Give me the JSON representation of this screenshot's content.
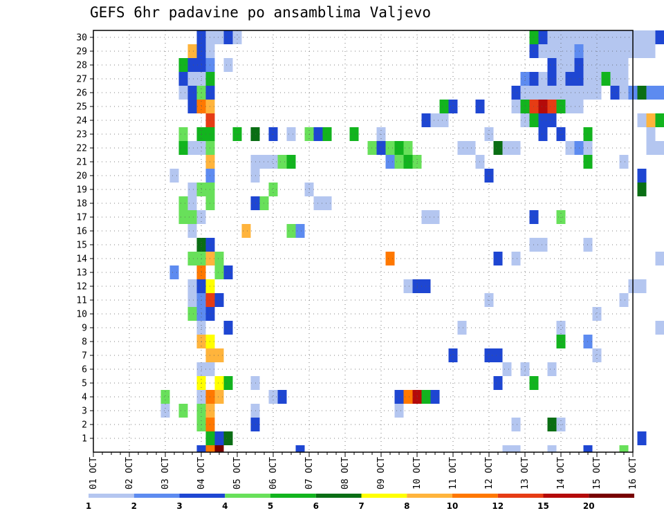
{
  "chart_data": {
    "type": "heatmap",
    "title": "GEFS 6hr padavine po ansamblima Valjevo",
    "xlabel": "",
    "ylabel": "",
    "x_ticks": [
      "01 OCT",
      "02 OCT",
      "03 OCT",
      "04 OCT",
      "05 OCT",
      "06 OCT",
      "07 OCT",
      "08 OCT",
      "09 OCT",
      "10 OCT",
      "11 OCT",
      "12 OCT",
      "13 OCT",
      "14 OCT",
      "15 OCT",
      "16 OCT"
    ],
    "y_ticks": [
      "1",
      "2",
      "3",
      "4",
      "5",
      "6",
      "7",
      "8",
      "9",
      "10",
      "11",
      "12",
      "13",
      "14",
      "15",
      "16",
      "17",
      "18",
      "19",
      "20",
      "21",
      "22",
      "23",
      "24",
      "25",
      "26",
      "27",
      "28",
      "29",
      "30"
    ],
    "time_step_hours": 6,
    "members": 31,
    "grid": "dotted",
    "legend_placement": "bottom",
    "legend": {
      "bins": [
        {
          "color": "#b4c6f0"
        },
        {
          "color": "#5d8bf0"
        },
        {
          "color": "#1e46d2"
        },
        {
          "color": "#68e05a"
        },
        {
          "color": "#12b41e"
        },
        {
          "color": "#0a6e14"
        },
        {
          "color": "#ffff00"
        },
        {
          "color": "#ffb43c"
        },
        {
          "color": "#ff7800"
        },
        {
          "color": "#e63c14"
        },
        {
          "color": "#b40a0a"
        },
        {
          "color": "#780000"
        }
      ],
      "labels": [
        "1",
        "2",
        "3",
        "4",
        "5",
        "6",
        "7",
        "8",
        "10",
        "12",
        "15",
        "20"
      ]
    },
    "cells": [
      [
        0,
        12,
        2
      ],
      [
        0,
        13,
        8
      ],
      [
        0,
        14,
        11
      ],
      [
        0,
        23,
        2
      ],
      [
        0,
        46,
        0
      ],
      [
        0,
        47,
        0
      ],
      [
        0,
        51,
        0
      ],
      [
        0,
        55,
        2
      ],
      [
        0,
        59,
        3
      ],
      [
        1,
        13,
        4
      ],
      [
        1,
        14,
        2
      ],
      [
        1,
        15,
        5
      ],
      [
        1,
        61,
        2
      ],
      [
        2,
        12,
        3
      ],
      [
        2,
        13,
        8
      ],
      [
        2,
        18,
        2
      ],
      [
        2,
        47,
        0
      ],
      [
        2,
        51,
        5
      ],
      [
        2,
        52,
        0
      ],
      [
        3,
        8,
        0
      ],
      [
        3,
        10,
        3
      ],
      [
        3,
        12,
        3
      ],
      [
        3,
        13,
        7
      ],
      [
        3,
        18,
        0
      ],
      [
        3,
        34,
        0
      ],
      [
        4,
        8,
        3
      ],
      [
        4,
        12,
        0
      ],
      [
        4,
        13,
        8
      ],
      [
        4,
        14,
        7
      ],
      [
        4,
        20,
        0
      ],
      [
        4,
        21,
        2
      ],
      [
        4,
        34,
        2
      ],
      [
        4,
        35,
        8
      ],
      [
        4,
        36,
        10
      ],
      [
        4,
        37,
        4
      ],
      [
        4,
        38,
        2
      ],
      [
        5,
        12,
        6
      ],
      [
        5,
        14,
        6
      ],
      [
        5,
        15,
        4
      ],
      [
        5,
        18,
        0
      ],
      [
        5,
        45,
        2
      ],
      [
        5,
        49,
        4
      ],
      [
        6,
        12,
        0
      ],
      [
        6,
        13,
        0
      ],
      [
        6,
        46,
        0
      ],
      [
        6,
        48,
        0
      ],
      [
        6,
        51,
        0
      ],
      [
        7,
        13,
        7
      ],
      [
        7,
        14,
        7
      ],
      [
        7,
        40,
        2
      ],
      [
        7,
        44,
        2
      ],
      [
        7,
        45,
        2
      ],
      [
        7,
        56,
        0
      ],
      [
        8,
        12,
        7
      ],
      [
        8,
        13,
        6
      ],
      [
        8,
        52,
        4
      ],
      [
        8,
        55,
        1
      ],
      [
        9,
        12,
        0
      ],
      [
        9,
        15,
        2
      ],
      [
        9,
        41,
        0
      ],
      [
        9,
        52,
        0
      ],
      [
        9,
        63,
        0
      ],
      [
        10,
        11,
        3
      ],
      [
        10,
        12,
        1
      ],
      [
        10,
        13,
        2
      ],
      [
        10,
        56,
        0
      ],
      [
        11,
        11,
        0
      ],
      [
        11,
        12,
        1
      ],
      [
        11,
        13,
        9
      ],
      [
        11,
        14,
        2
      ],
      [
        11,
        44,
        0
      ],
      [
        11,
        59,
        0
      ],
      [
        12,
        11,
        0
      ],
      [
        12,
        12,
        2
      ],
      [
        12,
        13,
        6
      ],
      [
        12,
        35,
        0
      ],
      [
        12,
        36,
        2
      ],
      [
        12,
        37,
        2
      ],
      [
        12,
        60,
        0
      ],
      [
        12,
        61,
        0
      ],
      [
        13,
        9,
        1
      ],
      [
        13,
        12,
        8
      ],
      [
        13,
        14,
        3
      ],
      [
        13,
        15,
        2
      ],
      [
        14,
        11,
        3
      ],
      [
        14,
        12,
        3
      ],
      [
        14,
        13,
        7
      ],
      [
        14,
        14,
        3
      ],
      [
        14,
        33,
        8
      ],
      [
        14,
        45,
        2
      ],
      [
        14,
        47,
        0
      ],
      [
        14,
        63,
        0
      ],
      [
        15,
        12,
        5
      ],
      [
        15,
        13,
        2
      ],
      [
        15,
        49,
        0
      ],
      [
        15,
        50,
        0
      ],
      [
        15,
        55,
        0
      ],
      [
        16,
        11,
        0
      ],
      [
        16,
        17,
        7
      ],
      [
        16,
        22,
        3
      ],
      [
        16,
        23,
        1
      ],
      [
        17,
        10,
        3
      ],
      [
        17,
        11,
        3
      ],
      [
        17,
        12,
        0
      ],
      [
        17,
        37,
        0
      ],
      [
        17,
        38,
        0
      ],
      [
        17,
        49,
        2
      ],
      [
        17,
        52,
        3
      ],
      [
        18,
        10,
        3
      ],
      [
        18,
        11,
        0
      ],
      [
        18,
        13,
        3
      ],
      [
        18,
        18,
        2
      ],
      [
        18,
        19,
        3
      ],
      [
        18,
        25,
        0
      ],
      [
        18,
        26,
        0
      ],
      [
        19,
        11,
        0
      ],
      [
        19,
        12,
        3
      ],
      [
        19,
        13,
        3
      ],
      [
        19,
        20,
        3
      ],
      [
        19,
        24,
        0
      ],
      [
        19,
        61,
        5
      ],
      [
        20,
        9,
        0
      ],
      [
        20,
        13,
        1
      ],
      [
        20,
        18,
        0
      ],
      [
        20,
        44,
        2
      ],
      [
        20,
        61,
        2
      ],
      [
        21,
        13,
        7
      ],
      [
        21,
        18,
        0
      ],
      [
        21,
        19,
        0
      ],
      [
        21,
        20,
        0
      ],
      [
        21,
        21,
        3
      ],
      [
        21,
        22,
        4
      ],
      [
        21,
        33,
        1
      ],
      [
        21,
        34,
        3
      ],
      [
        21,
        35,
        4
      ],
      [
        21,
        36,
        3
      ],
      [
        21,
        43,
        0
      ],
      [
        21,
        55,
        4
      ],
      [
        21,
        59,
        0
      ],
      [
        22,
        10,
        4
      ],
      [
        22,
        11,
        0
      ],
      [
        22,
        12,
        0
      ],
      [
        22,
        13,
        3
      ],
      [
        22,
        31,
        3
      ],
      [
        22,
        32,
        2
      ],
      [
        22,
        33,
        3
      ],
      [
        22,
        34,
        4
      ],
      [
        22,
        35,
        3
      ],
      [
        22,
        41,
        0
      ],
      [
        22,
        42,
        0
      ],
      [
        22,
        45,
        5
      ],
      [
        22,
        46,
        0
      ],
      [
        22,
        47,
        0
      ],
      [
        22,
        53,
        0
      ],
      [
        22,
        54,
        1
      ],
      [
        22,
        55,
        0
      ],
      [
        22,
        62,
        0
      ],
      [
        22,
        63,
        0
      ],
      [
        23,
        10,
        3
      ],
      [
        23,
        12,
        4
      ],
      [
        23,
        13,
        4
      ],
      [
        23,
        16,
        4
      ],
      [
        23,
        18,
        5
      ],
      [
        23,
        20,
        2
      ],
      [
        23,
        22,
        0
      ],
      [
        23,
        24,
        3
      ],
      [
        23,
        25,
        2
      ],
      [
        23,
        26,
        4
      ],
      [
        23,
        29,
        4
      ],
      [
        23,
        32,
        0
      ],
      [
        23,
        44,
        0
      ],
      [
        23,
        50,
        2
      ],
      [
        23,
        52,
        2
      ],
      [
        23,
        55,
        4
      ],
      [
        23,
        62,
        0
      ],
      [
        24,
        13,
        9
      ],
      [
        24,
        37,
        2
      ],
      [
        24,
        38,
        0
      ],
      [
        24,
        39,
        0
      ],
      [
        24,
        48,
        0
      ],
      [
        24,
        49,
        4
      ],
      [
        24,
        50,
        2
      ],
      [
        24,
        51,
        2
      ],
      [
        24,
        61,
        0
      ],
      [
        24,
        62,
        7
      ],
      [
        24,
        63,
        4
      ],
      [
        25,
        11,
        2
      ],
      [
        25,
        12,
        8
      ],
      [
        25,
        13,
        7
      ],
      [
        25,
        39,
        4
      ],
      [
        25,
        40,
        2
      ],
      [
        25,
        43,
        2
      ],
      [
        25,
        47,
        0
      ],
      [
        25,
        48,
        4
      ],
      [
        25,
        49,
        9
      ],
      [
        25,
        50,
        10
      ],
      [
        25,
        51,
        9
      ],
      [
        25,
        52,
        4
      ],
      [
        25,
        53,
        0
      ],
      [
        25,
        54,
        0
      ],
      [
        26,
        10,
        0
      ],
      [
        26,
        11,
        2
      ],
      [
        26,
        12,
        3
      ],
      [
        26,
        13,
        2
      ],
      [
        26,
        47,
        2
      ],
      [
        26,
        48,
        0
      ],
      [
        26,
        49,
        0
      ],
      [
        26,
        50,
        0
      ],
      [
        26,
        51,
        0
      ],
      [
        26,
        52,
        0
      ],
      [
        26,
        53,
        0
      ],
      [
        26,
        54,
        0
      ],
      [
        26,
        55,
        0
      ],
      [
        26,
        56,
        0
      ],
      [
        26,
        58,
        2
      ],
      [
        26,
        59,
        0
      ],
      [
        26,
        60,
        1
      ],
      [
        26,
        61,
        5
      ],
      [
        26,
        62,
        1
      ],
      [
        26,
        63,
        1
      ],
      [
        27,
        10,
        2
      ],
      [
        27,
        11,
        0
      ],
      [
        27,
        12,
        0
      ],
      [
        27,
        13,
        4
      ],
      [
        27,
        48,
        1
      ],
      [
        27,
        49,
        2
      ],
      [
        27,
        50,
        0
      ],
      [
        27,
        51,
        2
      ],
      [
        27,
        52,
        0
      ],
      [
        27,
        53,
        2
      ],
      [
        27,
        54,
        2
      ],
      [
        27,
        55,
        0
      ],
      [
        27,
        56,
        0
      ],
      [
        27,
        57,
        4
      ],
      [
        27,
        58,
        0
      ],
      [
        27,
        59,
        0
      ],
      [
        28,
        10,
        4
      ],
      [
        28,
        11,
        2
      ],
      [
        28,
        12,
        2
      ],
      [
        28,
        13,
        1
      ],
      [
        28,
        15,
        0
      ],
      [
        28,
        51,
        2
      ],
      [
        28,
        52,
        0
      ],
      [
        28,
        53,
        0
      ],
      [
        28,
        54,
        2
      ],
      [
        28,
        55,
        0
      ],
      [
        28,
        56,
        0
      ],
      [
        28,
        57,
        0
      ],
      [
        28,
        58,
        0
      ],
      [
        28,
        59,
        0
      ],
      [
        29,
        11,
        7
      ],
      [
        29,
        12,
        2
      ],
      [
        29,
        13,
        0
      ],
      [
        29,
        49,
        2
      ],
      [
        29,
        50,
        0
      ],
      [
        29,
        51,
        0
      ],
      [
        29,
        52,
        0
      ],
      [
        29,
        53,
        0
      ],
      [
        29,
        54,
        1
      ],
      [
        29,
        55,
        0
      ],
      [
        29,
        56,
        0
      ],
      [
        29,
        57,
        0
      ],
      [
        29,
        58,
        0
      ],
      [
        29,
        59,
        0
      ],
      [
        29,
        60,
        0
      ],
      [
        29,
        61,
        0
      ],
      [
        29,
        62,
        0
      ],
      [
        30,
        12,
        2
      ],
      [
        30,
        13,
        0
      ],
      [
        30,
        14,
        0
      ],
      [
        30,
        15,
        2
      ],
      [
        30,
        16,
        0
      ],
      [
        30,
        49,
        4
      ],
      [
        30,
        50,
        2
      ],
      [
        30,
        51,
        0
      ],
      [
        30,
        52,
        0
      ],
      [
        30,
        53,
        0
      ],
      [
        30,
        54,
        0
      ],
      [
        30,
        55,
        0
      ],
      [
        30,
        56,
        0
      ],
      [
        30,
        57,
        0
      ],
      [
        30,
        58,
        0
      ],
      [
        30,
        59,
        0
      ],
      [
        30,
        60,
        0
      ],
      [
        30,
        61,
        0
      ],
      [
        30,
        62,
        0
      ],
      [
        30,
        63,
        2
      ]
    ]
  }
}
